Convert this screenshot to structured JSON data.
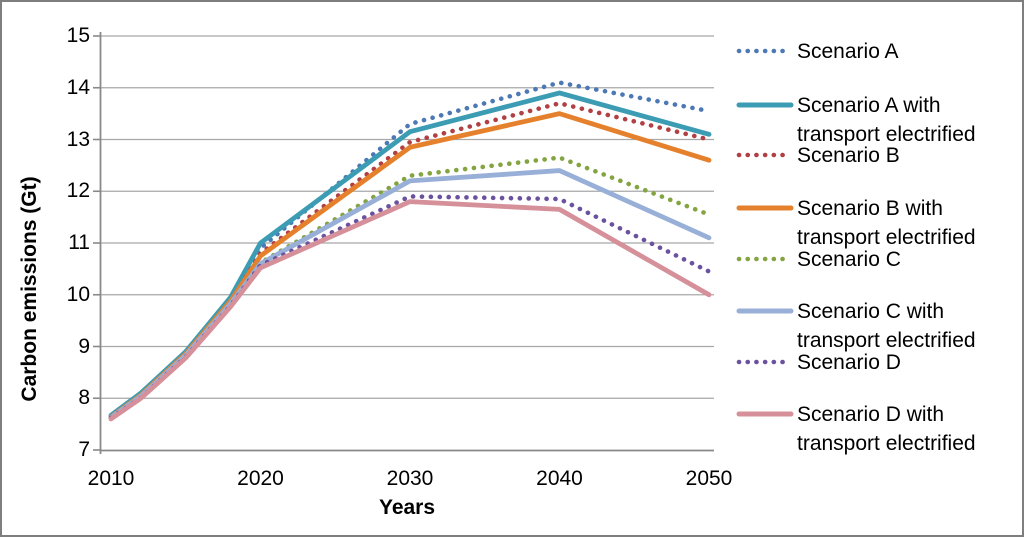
{
  "chart_data": {
    "type": "line",
    "title": "",
    "xlabel": "Years",
    "ylabel": "Carbon emissions (Gt)",
    "xlim": [
      2010,
      2050
    ],
    "ylim": [
      7,
      15
    ],
    "grid": true,
    "legend_position": "right",
    "y_ticks": [
      7,
      8,
      9,
      10,
      11,
      12,
      13,
      14,
      15
    ],
    "x_ticks": [
      2010,
      2020,
      2030,
      2040,
      2050
    ],
    "x": [
      2010,
      2012,
      2015,
      2018,
      2020,
      2030,
      2040,
      2050
    ],
    "series": [
      {
        "name": "Scenario A",
        "legend_lines": [
          "Scenario A"
        ],
        "style": "dotted",
        "color": "#4C79B5",
        "values": [
          7.65,
          8.08,
          8.88,
          9.92,
          10.9,
          13.3,
          14.1,
          13.55
        ]
      },
      {
        "name": "Scenario A with transport electrified",
        "legend_lines": [
          "Scenario A with",
          "transport electrified"
        ],
        "style": "solid",
        "color": "#3B9CB3",
        "values": [
          7.67,
          8.1,
          8.9,
          9.95,
          11.0,
          13.15,
          13.9,
          13.1
        ]
      },
      {
        "name": "Scenario B",
        "legend_lines": [
          "Scenario B"
        ],
        "style": "dotted",
        "color": "#B04043",
        "values": [
          7.64,
          8.05,
          8.85,
          9.87,
          10.8,
          12.95,
          13.7,
          13.0
        ]
      },
      {
        "name": "Scenario B with transport electrified",
        "legend_lines": [
          "Scenario B with",
          "transport electrified"
        ],
        "style": "solid",
        "color": "#E5812D",
        "values": [
          7.64,
          8.06,
          8.86,
          9.88,
          10.75,
          12.85,
          13.5,
          12.6
        ]
      },
      {
        "name": "Scenario C",
        "legend_lines": [
          "Scenario C"
        ],
        "style": "dotted",
        "color": "#83A440",
        "values": [
          7.63,
          8.03,
          8.82,
          9.82,
          10.62,
          12.3,
          12.65,
          11.55
        ]
      },
      {
        "name": "Scenario C with transport electrified",
        "legend_lines": [
          "Scenario C with",
          "transport electrified"
        ],
        "style": "solid",
        "color": "#98AFD8",
        "values": [
          7.63,
          8.04,
          8.83,
          9.83,
          10.6,
          12.2,
          12.4,
          11.1
        ]
      },
      {
        "name": "Scenario D",
        "legend_lines": [
          "Scenario D"
        ],
        "style": "dotted",
        "color": "#6B519E",
        "values": [
          7.62,
          8.01,
          8.8,
          9.79,
          10.57,
          11.9,
          11.85,
          10.45
        ]
      },
      {
        "name": "Scenario D with transport electrified",
        "legend_lines": [
          "Scenario D with",
          "transport electrified"
        ],
        "style": "solid",
        "color": "#D5909A",
        "values": [
          7.6,
          8.0,
          8.78,
          9.77,
          10.52,
          11.8,
          11.65,
          10.0
        ]
      }
    ],
    "axis_color": "#898989",
    "gridline_color": "#A8A8A8"
  }
}
